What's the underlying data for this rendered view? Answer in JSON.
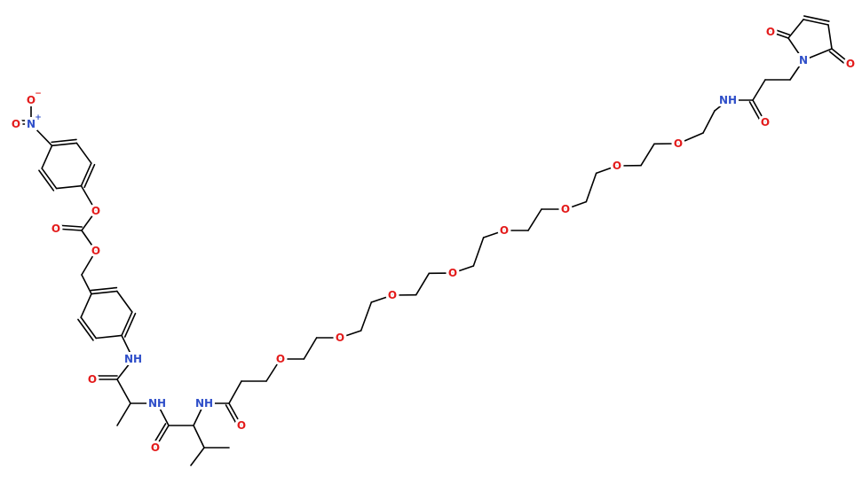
{
  "atoms": [
    {
      "label": "O",
      "charge": "−"
    },
    {
      "label": "N",
      "charge": "+"
    },
    {
      "label": "O"
    },
    {
      "label": "O"
    },
    {
      "label": "O"
    },
    {
      "label": "O"
    },
    {
      "label": "NH"
    },
    {
      "label": "O"
    },
    {
      "label": "NH"
    },
    {
      "label": "O"
    },
    {
      "label": "NH"
    },
    {
      "label": "O"
    },
    {
      "label": "O"
    },
    {
      "label": "O"
    },
    {
      "label": "O"
    },
    {
      "label": "O"
    },
    {
      "label": "O"
    },
    {
      "label": "O"
    },
    {
      "label": "O"
    },
    {
      "label": "O"
    },
    {
      "label": "NH"
    },
    {
      "label": "O"
    },
    {
      "label": "N"
    },
    {
      "label": "O"
    },
    {
      "label": "O"
    }
  ]
}
